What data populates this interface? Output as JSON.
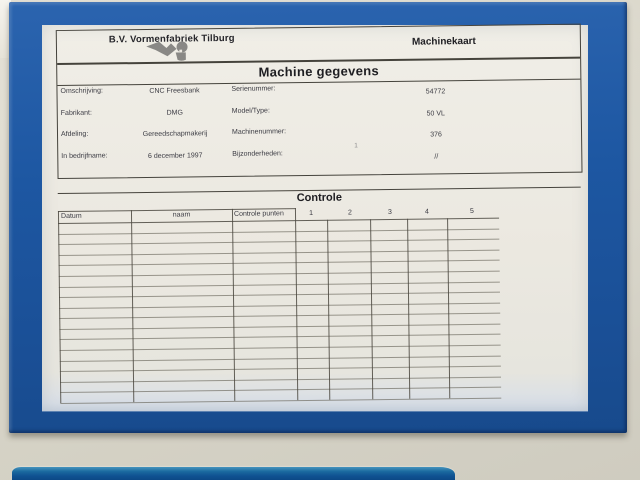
{
  "header": {
    "company": "B.V. Vormenfabriek Tilburg",
    "card_label": "Machinekaart",
    "logo": "vormenfabriek-logo"
  },
  "machine": {
    "title": "Machine gegevens",
    "fields": [
      {
        "label": "Omschrijving:",
        "value": "CNC Freesbank",
        "label2": "Serienummer:",
        "value2": "54772"
      },
      {
        "label": "Fabrikant:",
        "value": "DMG",
        "label2": "Model/Type:",
        "value2": "50 VL"
      },
      {
        "label": "Afdeling:",
        "value": "Gereedschapmakerij",
        "label2": "Machinenummer:",
        "value2": "376"
      },
      {
        "label": "In bedrijfname:",
        "value": "6 december 1997",
        "label2": "Bijzonderheden:",
        "value2": "//",
        "note": "1"
      }
    ]
  },
  "controle": {
    "title": "Controle",
    "columns": [
      "Datum",
      "naam",
      "Controle punten",
      "1",
      "2",
      "3",
      "4",
      "5"
    ],
    "row_count": 17,
    "rows": []
  },
  "colors": {
    "frame_blue": "#1d57a2",
    "paper": "#ebe8e0",
    "wall": "#d8d5c8",
    "grid_line": "#4a473e"
  }
}
